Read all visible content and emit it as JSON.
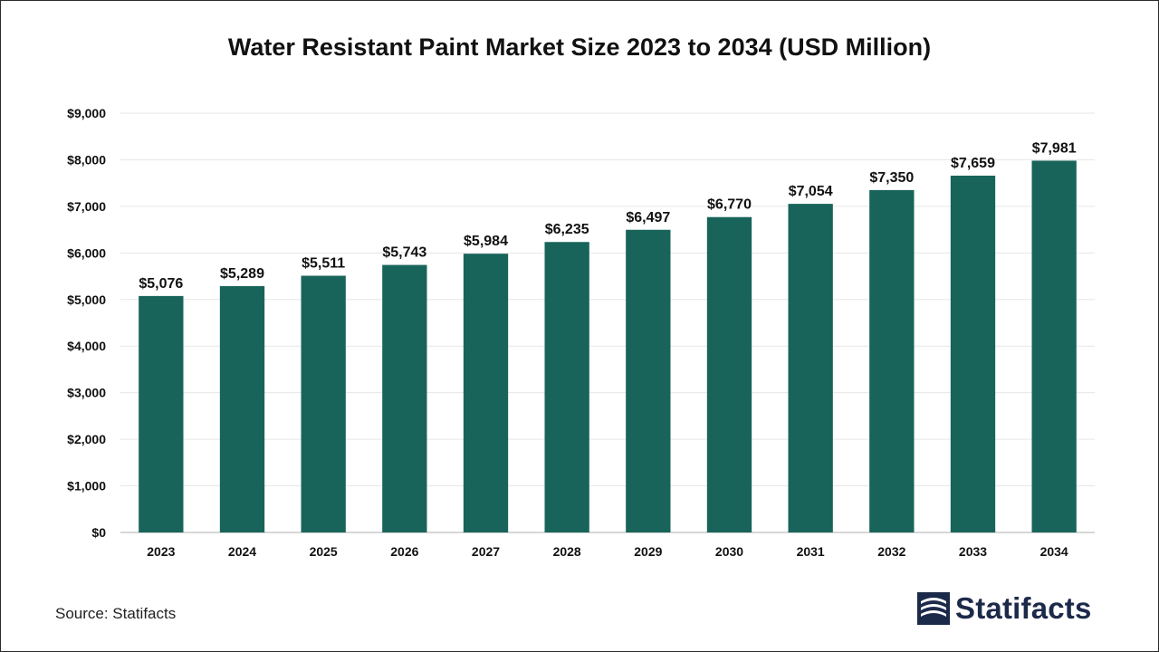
{
  "colors": {
    "bar": "#18645a",
    "grid": "#e6e6e6",
    "axis": "#bfbfbf",
    "text": "#111111",
    "logo": "#1c2a4a"
  },
  "source_text": "Source: Statifacts",
  "logo": {
    "text": "Statifacts",
    "icon": "statifacts-logo-icon"
  },
  "chart_data": {
    "type": "bar",
    "title": "Water Resistant Paint Market Size 2023 to 2034 (USD Million)",
    "xlabel": "",
    "ylabel": "",
    "categories": [
      "2023",
      "2024",
      "2025",
      "2026",
      "2027",
      "2028",
      "2029",
      "2030",
      "2031",
      "2032",
      "2033",
      "2034"
    ],
    "values": [
      5076,
      5289,
      5511,
      5743,
      5984,
      6235,
      6497,
      6770,
      7054,
      7350,
      7659,
      7981
    ],
    "value_labels": [
      "$5,076",
      "$5,289",
      "$5,511",
      "$5,743",
      "$5,984",
      "$6,235",
      "$6,497",
      "$6,770",
      "$7,054",
      "$7,350",
      "$7,659",
      "$7,981"
    ],
    "ylim": [
      0,
      9000
    ],
    "yticks": [
      0,
      1000,
      2000,
      3000,
      4000,
      5000,
      6000,
      7000,
      8000,
      9000
    ],
    "ytick_labels": [
      "$0",
      "$1,000",
      "$2,000",
      "$3,000",
      "$4,000",
      "$5,000",
      "$6,000",
      "$7,000",
      "$8,000",
      "$9,000"
    ],
    "grid": true,
    "legend": "none"
  }
}
